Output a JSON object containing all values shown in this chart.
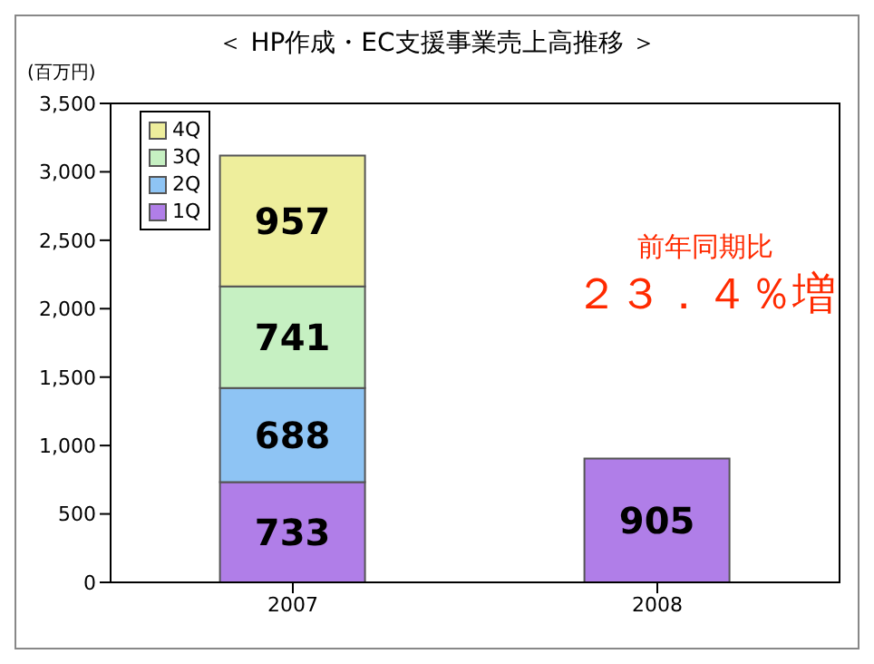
{
  "chart_data": {
    "type": "bar",
    "title": "＜ HP作成・EC支援事業売上高推移 ＞",
    "ylabel": "(百万円)",
    "categories": [
      "2007",
      "2008"
    ],
    "stacked": true,
    "data_labels": true,
    "legend": "top left",
    "grid": false,
    "series": [
      {
        "name": "1Q",
        "color": "#b07ee8",
        "values": [
          733,
          905
        ]
      },
      {
        "name": "2Q",
        "color": "#8ec4f4",
        "values": [
          688,
          null
        ]
      },
      {
        "name": "3Q",
        "color": "#c6f0c2",
        "values": [
          741,
          null
        ]
      },
      {
        "name": "4Q",
        "color": "#eeee9c",
        "values": [
          957,
          null
        ]
      }
    ],
    "ylim": [
      0,
      3500
    ],
    "yticks": [
      0,
      500,
      {
        "value": 1000,
        "label": "1,000"
      },
      {
        "value": 1500,
        "label": "1,500"
      },
      {
        "value": 2000,
        "label": "2,000"
      },
      {
        "value": 2500,
        "label": "2,500"
      },
      {
        "value": 3000,
        "label": "3,000"
      },
      {
        "value": 3500,
        "label": "3,500"
      }
    ],
    "annotations": [
      "前年同期比",
      "２３．４％増"
    ]
  }
}
